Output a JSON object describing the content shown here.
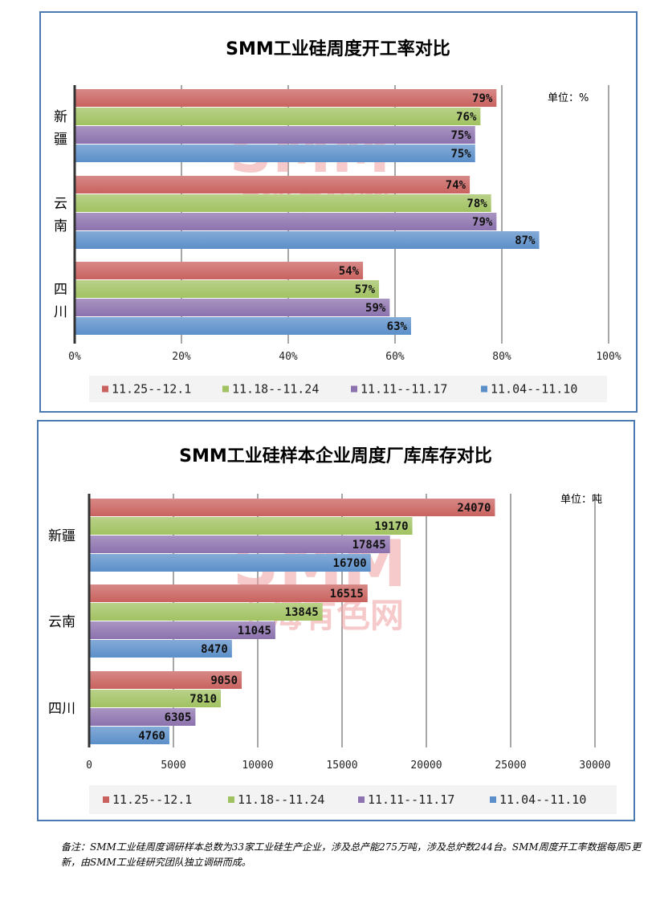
{
  "chart_data": [
    {
      "type": "bar",
      "orientation": "horizontal",
      "title": "SMM工业硅周度开工率对比",
      "unit_label": "单位：%",
      "categories": [
        "新疆",
        "云南",
        "四川"
      ],
      "series": [
        {
          "name": "11.25--12.1",
          "color": "#c9625f",
          "values": [
            79,
            74,
            54
          ]
        },
        {
          "name": "11.18--11.24",
          "color": "#a1c261",
          "values": [
            76,
            78,
            57
          ]
        },
        {
          "name": "11.11--11.17",
          "color": "#8c72ae",
          "values": [
            75,
            79,
            59
          ]
        },
        {
          "name": "11.04--11.10",
          "color": "#5b8fc9",
          "values": [
            75,
            87,
            63
          ]
        }
      ],
      "data_labels": [
        [
          "79%",
          "74%",
          "54%"
        ],
        [
          "76%",
          "78%",
          "57%"
        ],
        [
          "75%",
          "79%",
          "59%"
        ],
        [
          "75%",
          "87%",
          "63%"
        ]
      ],
      "xlim": [
        0,
        100
      ],
      "ticks": [
        0,
        20,
        40,
        60,
        80,
        100
      ],
      "tick_labels": [
        "0%",
        "20%",
        "40%",
        "60%",
        "80%",
        "100%"
      ],
      "grid": true,
      "legend_position": "bottom",
      "watermark": {
        "line1": "SMM",
        "line2": "上海有色网"
      }
    },
    {
      "type": "bar",
      "orientation": "horizontal",
      "title": "SMM工业硅样本企业周度厂库库存对比",
      "unit_label": "单位：吨",
      "categories": [
        "新疆",
        "云南",
        "四川"
      ],
      "series": [
        {
          "name": "11.25--12.1",
          "color": "#c9625f",
          "values": [
            24070,
            16515,
            9050
          ]
        },
        {
          "name": "11.18--11.24",
          "color": "#a1c261",
          "values": [
            19170,
            13845,
            7810
          ]
        },
        {
          "name": "11.11--11.17",
          "color": "#8c72ae",
          "values": [
            17845,
            11045,
            6305
          ]
        },
        {
          "name": "11.04--11.10",
          "color": "#5b8fc9",
          "values": [
            16700,
            8470,
            4760
          ]
        }
      ],
      "data_labels": [
        [
          "24070",
          "16515",
          "9050"
        ],
        [
          "19170",
          "13845",
          "7810"
        ],
        [
          "17845",
          "11045",
          "6305"
        ],
        [
          "16700",
          "8470",
          "4760"
        ]
      ],
      "xlim": [
        0,
        30000
      ],
      "ticks": [
        0,
        5000,
        10000,
        15000,
        20000,
        25000,
        30000
      ],
      "tick_labels": [
        "0",
        "5000",
        "10000",
        "15000",
        "20000",
        "25000",
        "30000"
      ],
      "grid": true,
      "legend_position": "bottom",
      "watermark": {
        "line1": "SMM",
        "line2": "上海有色网"
      }
    }
  ],
  "footnote": "备注：SMM工业硅周度调研样本总数为33家工业硅生产企业，涉及总产能275万吨，涉及总炉数244台。SMM周度开工率数据每周5更新，由SMM工业硅研究团队独立调研而成。"
}
